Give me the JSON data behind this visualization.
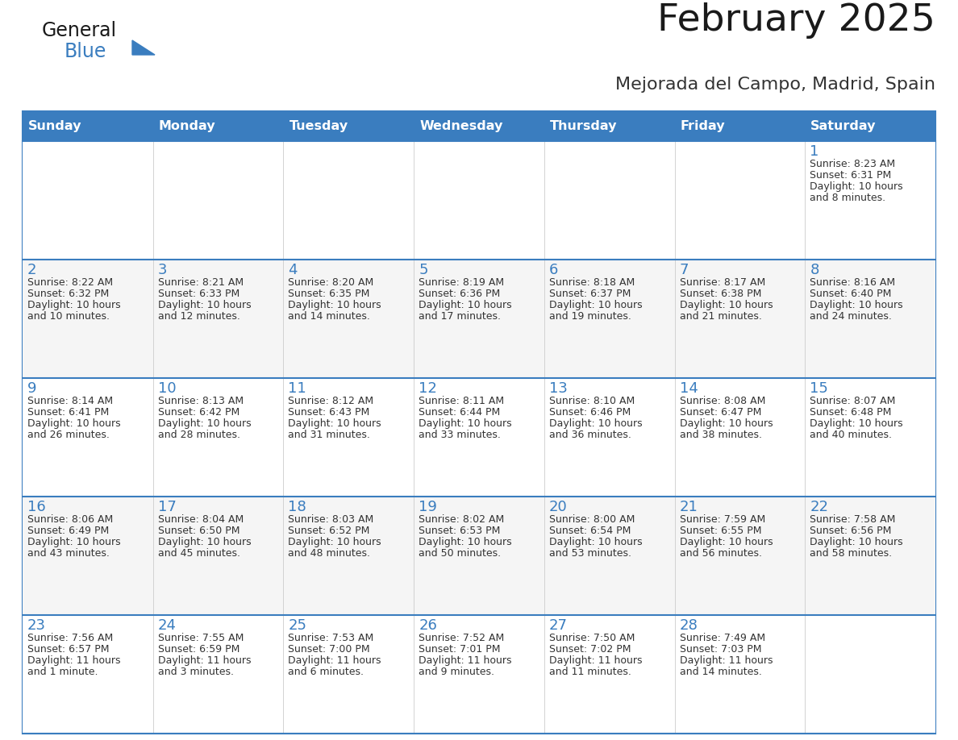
{
  "title": "February 2025",
  "subtitle": "Mejorada del Campo, Madrid, Spain",
  "logo_text1": "General",
  "logo_text2": "Blue",
  "header_color": "#3a7dbf",
  "header_text_color": "#ffffff",
  "border_color": "#3a7dbf",
  "day_names": [
    "Sunday",
    "Monday",
    "Tuesday",
    "Wednesday",
    "Thursday",
    "Friday",
    "Saturday"
  ],
  "title_color": "#1a1a1a",
  "subtitle_color": "#333333",
  "day_number_color": "#3a7dbf",
  "cell_text_color": "#333333",
  "logo_general_color": "#1a1a1a",
  "logo_blue_color": "#3a7dbf",
  "logo_triangle_color": "#3a7dbf",
  "weeks": [
    [
      {
        "day": 0,
        "info": ""
      },
      {
        "day": 0,
        "info": ""
      },
      {
        "day": 0,
        "info": ""
      },
      {
        "day": 0,
        "info": ""
      },
      {
        "day": 0,
        "info": ""
      },
      {
        "day": 0,
        "info": ""
      },
      {
        "day": 1,
        "info": "Sunrise: 8:23 AM\nSunset: 6:31 PM\nDaylight: 10 hours\nand 8 minutes."
      }
    ],
    [
      {
        "day": 2,
        "info": "Sunrise: 8:22 AM\nSunset: 6:32 PM\nDaylight: 10 hours\nand 10 minutes."
      },
      {
        "day": 3,
        "info": "Sunrise: 8:21 AM\nSunset: 6:33 PM\nDaylight: 10 hours\nand 12 minutes."
      },
      {
        "day": 4,
        "info": "Sunrise: 8:20 AM\nSunset: 6:35 PM\nDaylight: 10 hours\nand 14 minutes."
      },
      {
        "day": 5,
        "info": "Sunrise: 8:19 AM\nSunset: 6:36 PM\nDaylight: 10 hours\nand 17 minutes."
      },
      {
        "day": 6,
        "info": "Sunrise: 8:18 AM\nSunset: 6:37 PM\nDaylight: 10 hours\nand 19 minutes."
      },
      {
        "day": 7,
        "info": "Sunrise: 8:17 AM\nSunset: 6:38 PM\nDaylight: 10 hours\nand 21 minutes."
      },
      {
        "day": 8,
        "info": "Sunrise: 8:16 AM\nSunset: 6:40 PM\nDaylight: 10 hours\nand 24 minutes."
      }
    ],
    [
      {
        "day": 9,
        "info": "Sunrise: 8:14 AM\nSunset: 6:41 PM\nDaylight: 10 hours\nand 26 minutes."
      },
      {
        "day": 10,
        "info": "Sunrise: 8:13 AM\nSunset: 6:42 PM\nDaylight: 10 hours\nand 28 minutes."
      },
      {
        "day": 11,
        "info": "Sunrise: 8:12 AM\nSunset: 6:43 PM\nDaylight: 10 hours\nand 31 minutes."
      },
      {
        "day": 12,
        "info": "Sunrise: 8:11 AM\nSunset: 6:44 PM\nDaylight: 10 hours\nand 33 minutes."
      },
      {
        "day": 13,
        "info": "Sunrise: 8:10 AM\nSunset: 6:46 PM\nDaylight: 10 hours\nand 36 minutes."
      },
      {
        "day": 14,
        "info": "Sunrise: 8:08 AM\nSunset: 6:47 PM\nDaylight: 10 hours\nand 38 minutes."
      },
      {
        "day": 15,
        "info": "Sunrise: 8:07 AM\nSunset: 6:48 PM\nDaylight: 10 hours\nand 40 minutes."
      }
    ],
    [
      {
        "day": 16,
        "info": "Sunrise: 8:06 AM\nSunset: 6:49 PM\nDaylight: 10 hours\nand 43 minutes."
      },
      {
        "day": 17,
        "info": "Sunrise: 8:04 AM\nSunset: 6:50 PM\nDaylight: 10 hours\nand 45 minutes."
      },
      {
        "day": 18,
        "info": "Sunrise: 8:03 AM\nSunset: 6:52 PM\nDaylight: 10 hours\nand 48 minutes."
      },
      {
        "day": 19,
        "info": "Sunrise: 8:02 AM\nSunset: 6:53 PM\nDaylight: 10 hours\nand 50 minutes."
      },
      {
        "day": 20,
        "info": "Sunrise: 8:00 AM\nSunset: 6:54 PM\nDaylight: 10 hours\nand 53 minutes."
      },
      {
        "day": 21,
        "info": "Sunrise: 7:59 AM\nSunset: 6:55 PM\nDaylight: 10 hours\nand 56 minutes."
      },
      {
        "day": 22,
        "info": "Sunrise: 7:58 AM\nSunset: 6:56 PM\nDaylight: 10 hours\nand 58 minutes."
      }
    ],
    [
      {
        "day": 23,
        "info": "Sunrise: 7:56 AM\nSunset: 6:57 PM\nDaylight: 11 hours\nand 1 minute."
      },
      {
        "day": 24,
        "info": "Sunrise: 7:55 AM\nSunset: 6:59 PM\nDaylight: 11 hours\nand 3 minutes."
      },
      {
        "day": 25,
        "info": "Sunrise: 7:53 AM\nSunset: 7:00 PM\nDaylight: 11 hours\nand 6 minutes."
      },
      {
        "day": 26,
        "info": "Sunrise: 7:52 AM\nSunset: 7:01 PM\nDaylight: 11 hours\nand 9 minutes."
      },
      {
        "day": 27,
        "info": "Sunrise: 7:50 AM\nSunset: 7:02 PM\nDaylight: 11 hours\nand 11 minutes."
      },
      {
        "day": 28,
        "info": "Sunrise: 7:49 AM\nSunset: 7:03 PM\nDaylight: 11 hours\nand 14 minutes."
      },
      {
        "day": 0,
        "info": ""
      }
    ]
  ]
}
